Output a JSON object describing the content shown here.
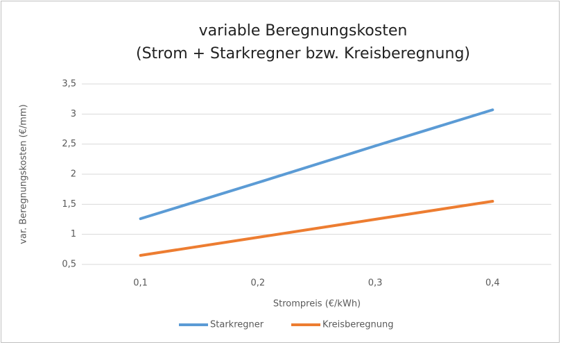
{
  "chart_data": {
    "type": "line",
    "title": [
      "variable Beregnungskosten",
      "(Strom + Starkregner bzw. Kreisberegnung)"
    ],
    "x_label": "Strompreis (€/kWh)",
    "y_label": "var. Beregnungskosten (€/mm)",
    "categories": [
      "0,1",
      "0,2",
      "0,3",
      "0,4"
    ],
    "series": [
      {
        "name": "Starkregner",
        "color": "#5b9bd5",
        "values": [
          1.26,
          1.86,
          2.47,
          3.07
        ]
      },
      {
        "name": "Kreisberegnung",
        "color": "#ed7d31",
        "values": [
          0.65,
          0.95,
          1.25,
          1.55
        ]
      }
    ],
    "ylim": [
      0.5,
      3.5
    ],
    "yticks": [
      {
        "value": 0.5,
        "label": "0,5"
      },
      1,
      {
        "value": 1.5,
        "label": "1,5"
      },
      2,
      {
        "value": 2.5,
        "label": "2,5"
      },
      3,
      {
        "value": 3.5,
        "label": "3,5"
      }
    ],
    "grid": true,
    "legend": "bottom"
  }
}
